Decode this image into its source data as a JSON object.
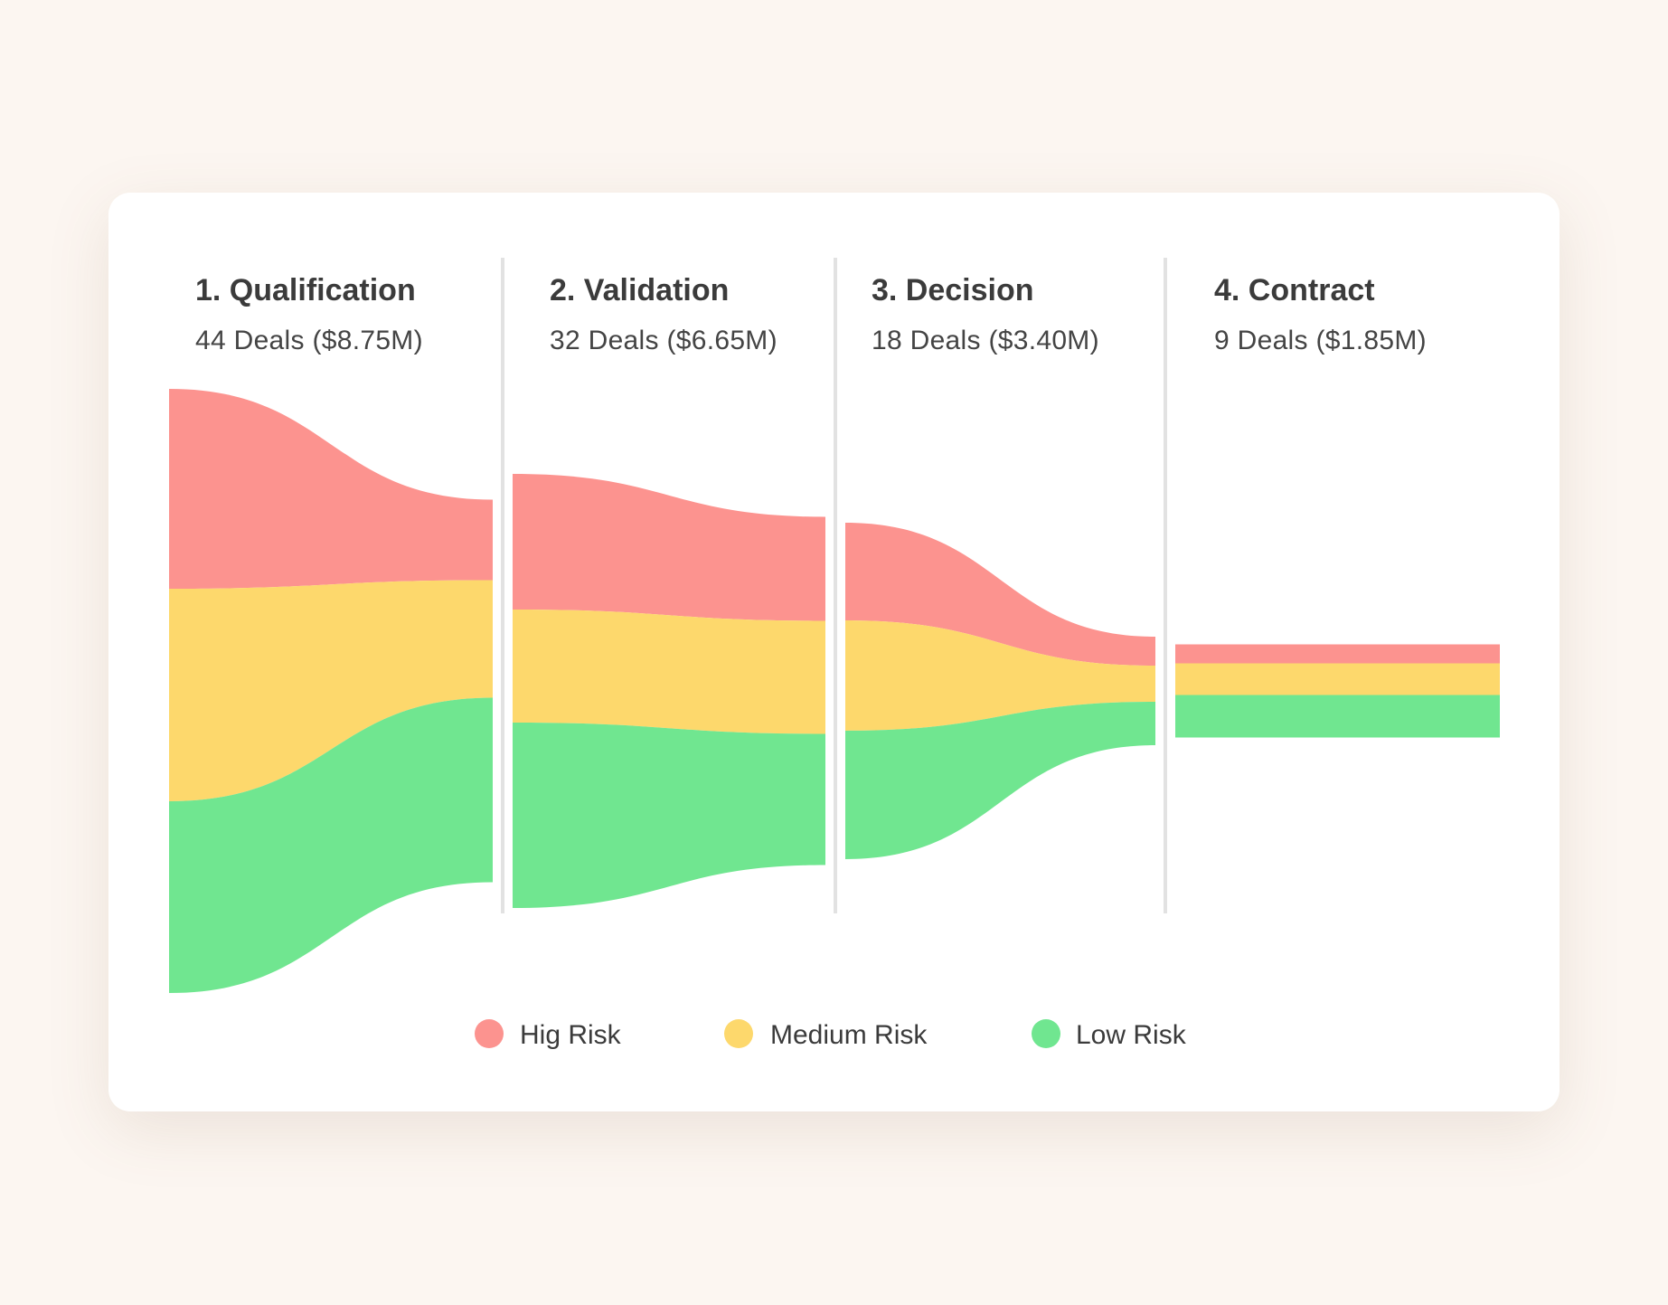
{
  "chart_data": {
    "type": "area",
    "stages": [
      {
        "title": "1. Qualification",
        "subtitle": "44 Deals ($8.75M)"
      },
      {
        "title": "2. Validation",
        "subtitle": "32 Deals ($6.65M)"
      },
      {
        "title": "3. Decision",
        "subtitle": "18 Deals ($3.40M)"
      },
      {
        "title": "4. Contract",
        "subtitle": "9 Deals ($1.85M)"
      }
    ],
    "series": [
      {
        "name": "Hig Risk",
        "color": "#fc938f",
        "values": [
          [
            221,
            89
          ],
          [
            150,
            115
          ],
          [
            108,
            32
          ],
          [
            21,
            21
          ]
        ]
      },
      {
        "name": "Medium Risk",
        "color": "#fdd86c",
        "values": [
          [
            235,
            130
          ],
          [
            125,
            125
          ],
          [
            122,
            40
          ],
          [
            35,
            35
          ]
        ]
      },
      {
        "name": "Low Risk",
        "color": "#70e690",
        "values": [
          [
            212,
            204
          ],
          [
            205,
            145
          ],
          [
            142,
            48
          ],
          [
            47,
            47
          ]
        ]
      }
    ],
    "legend": {
      "position": "bottom-center"
    }
  }
}
